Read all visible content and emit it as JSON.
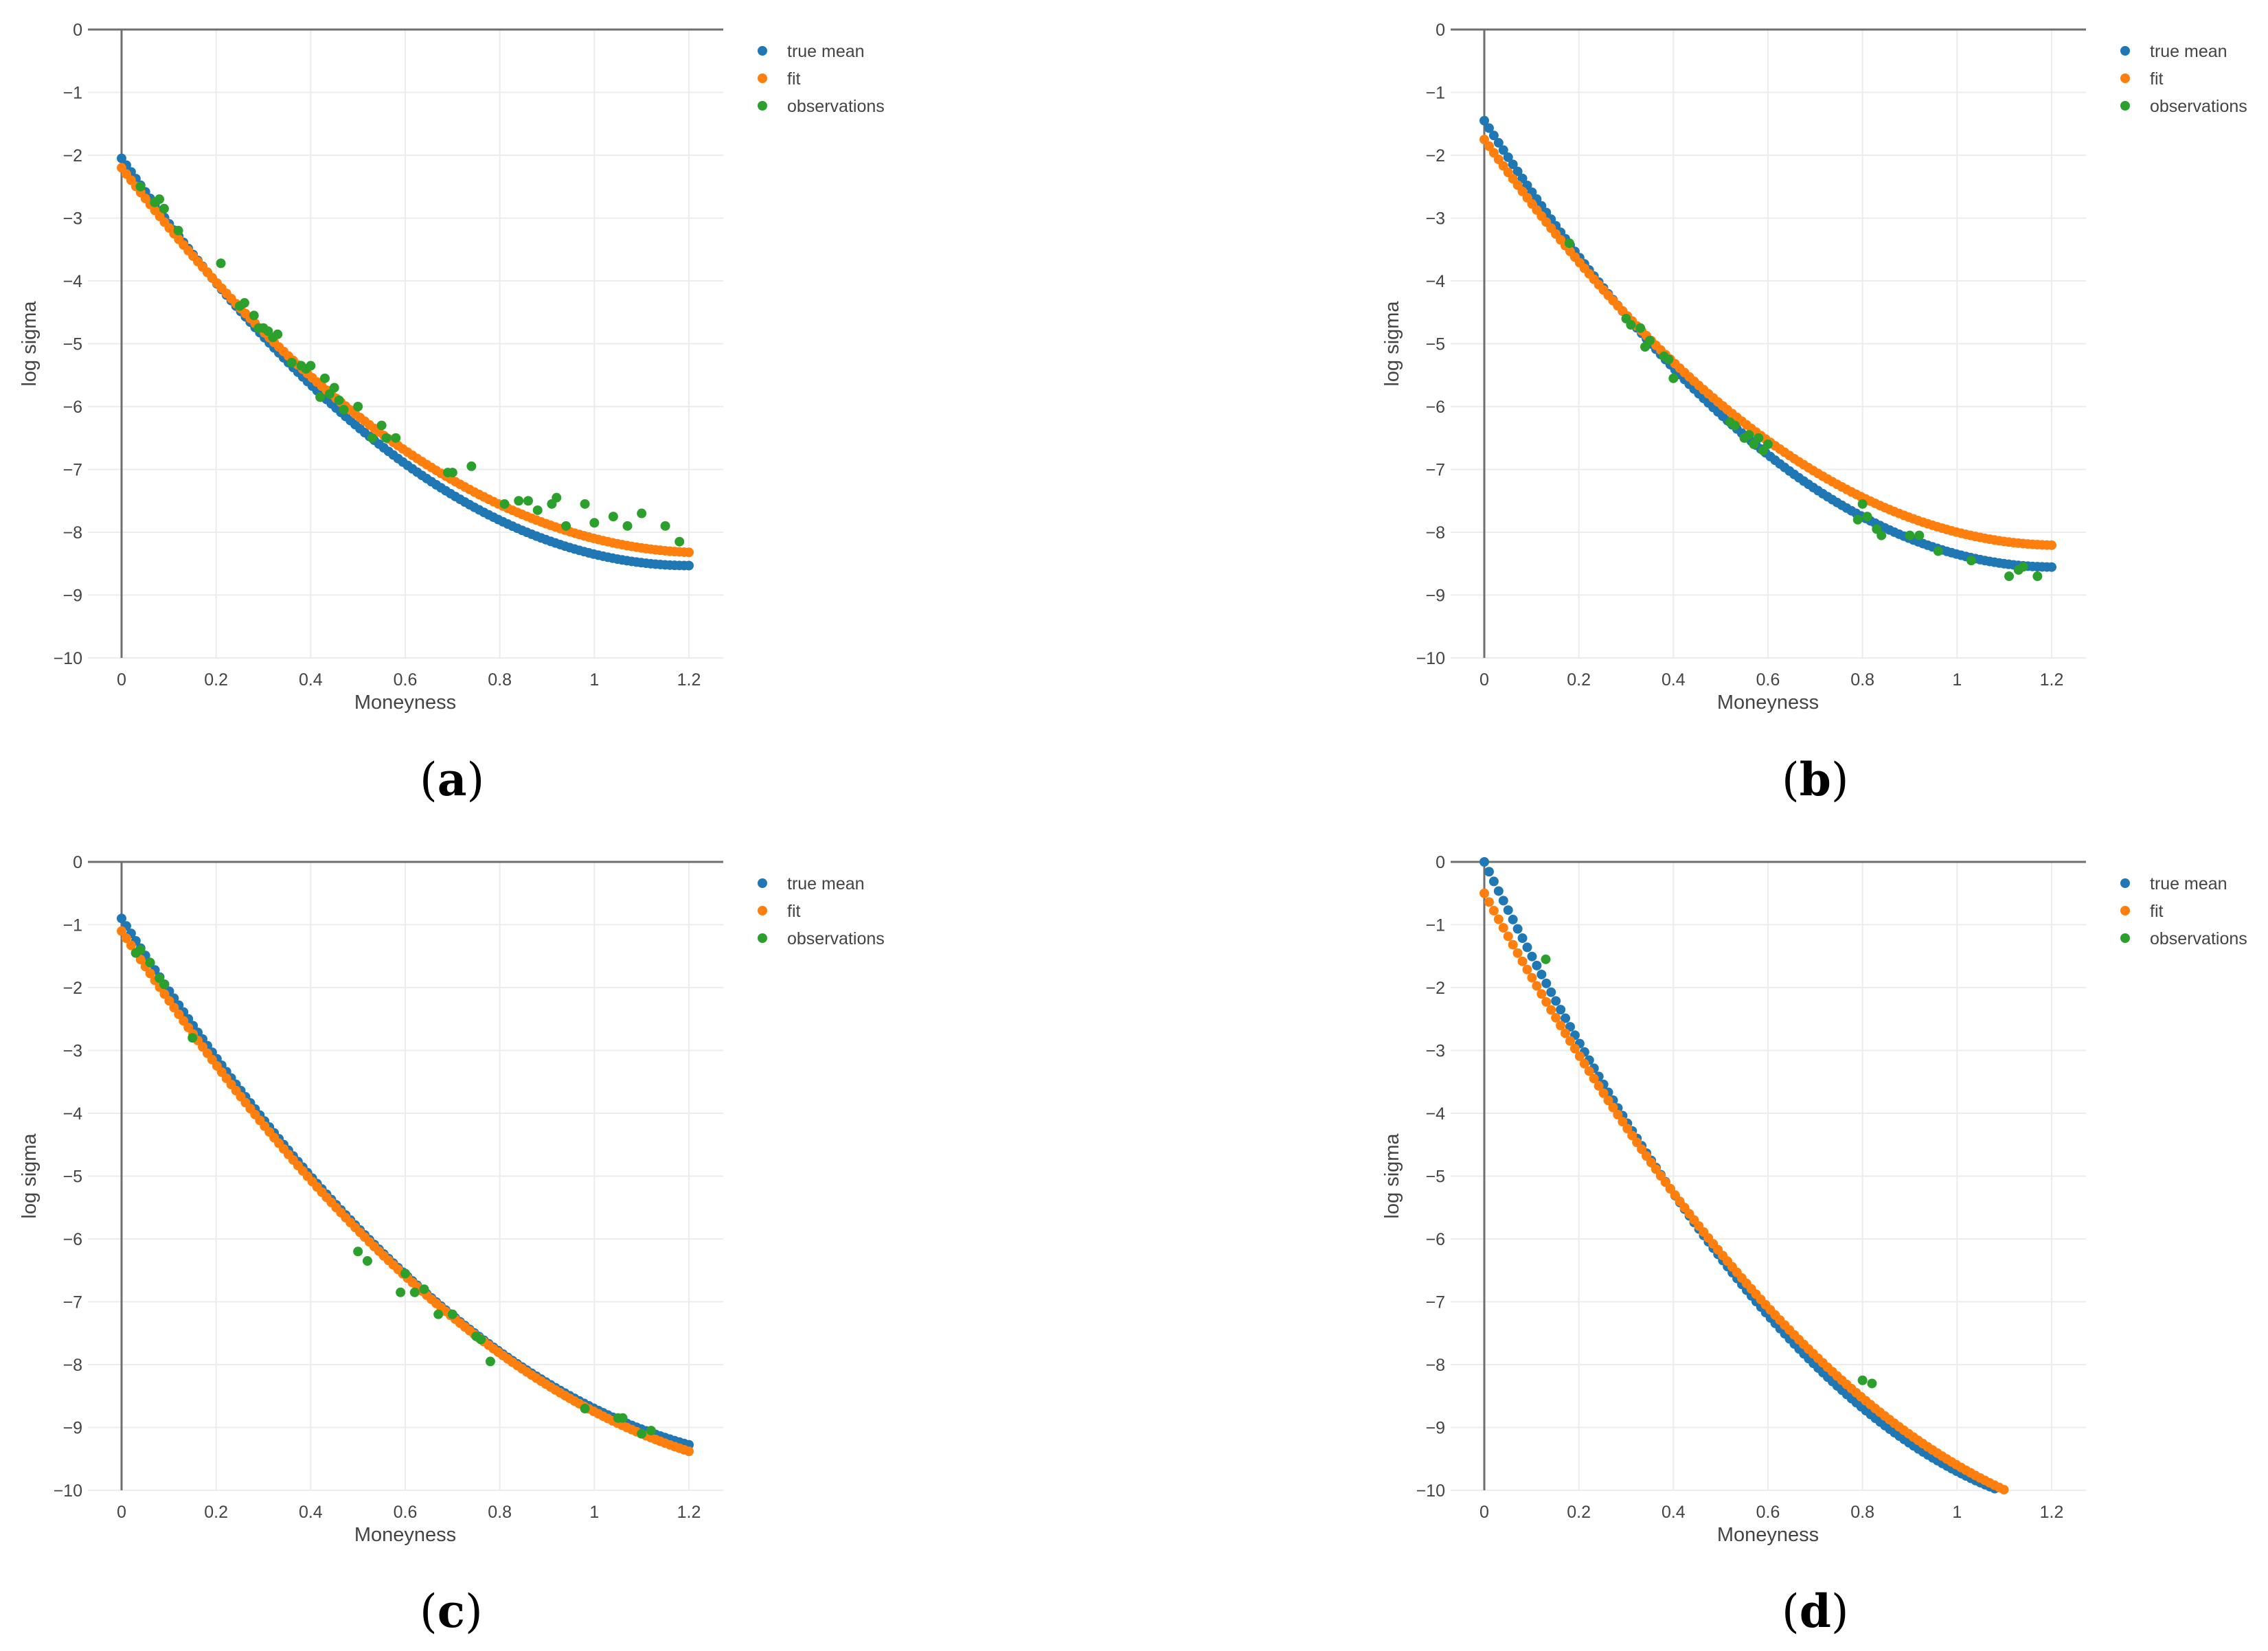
{
  "chart_data": [
    {
      "id": "a",
      "caption_letter": "a",
      "type": "scatter",
      "xlabel": "Moneyness",
      "ylabel": "log sigma",
      "xlim": [
        0,
        1.2
      ],
      "ylim": [
        -10,
        0
      ],
      "x_ticks": [
        0,
        0.2,
        0.4,
        0.6,
        0.8,
        1,
        1.2
      ],
      "x_tick_labels": [
        "0",
        "0.2",
        "0.4",
        "0.6",
        "0.8",
        "1",
        "1.2"
      ],
      "y_ticks": [
        0,
        -1,
        -2,
        -3,
        -4,
        -5,
        -6,
        -7,
        -8,
        -9,
        -10
      ],
      "y_tick_labels": [
        "0",
        "−1",
        "−2",
        "−3",
        "−4",
        "−5",
        "−6",
        "−7",
        "−8",
        "−9",
        "−10"
      ],
      "grid": true,
      "legend": "top-right",
      "legend_entries": [
        "true mean",
        "fit",
        "observations"
      ],
      "series": [
        {
          "name": "true mean",
          "color": "#1f77b4",
          "kind": "quadratic",
          "x_range": [
            0,
            1.2
          ],
          "count": 120,
          "coef": [
            -2.05,
            -10.8,
            4.5
          ]
        },
        {
          "name": "fit",
          "color": "#ff7f0e",
          "kind": "quadratic",
          "x_range": [
            0,
            1.2
          ],
          "count": 120,
          "coef": [
            -2.2,
            -9.9,
            4.0
          ]
        },
        {
          "name": "observations",
          "color": "#2ca02c",
          "kind": "points",
          "x": [
            0.04,
            0.07,
            0.08,
            0.09,
            0.12,
            0.21,
            0.25,
            0.26,
            0.28,
            0.29,
            0.3,
            0.31,
            0.32,
            0.33,
            0.36,
            0.38,
            0.39,
            0.4,
            0.42,
            0.43,
            0.44,
            0.45,
            0.46,
            0.47,
            0.5,
            0.53,
            0.55,
            0.56,
            0.58,
            0.69,
            0.7,
            0.74,
            0.81,
            0.84,
            0.86,
            0.88,
            0.91,
            0.92,
            0.94,
            0.98,
            1.0,
            1.04,
            1.07,
            1.1,
            1.15,
            1.18
          ],
          "y": [
            -2.5,
            -2.75,
            -2.7,
            -2.85,
            -3.2,
            -3.72,
            -4.4,
            -4.35,
            -4.55,
            -4.75,
            -4.75,
            -4.8,
            -4.9,
            -4.85,
            -5.3,
            -5.35,
            -5.4,
            -5.35,
            -5.85,
            -5.55,
            -5.8,
            -5.7,
            -5.9,
            -6.05,
            -6.0,
            -6.5,
            -6.3,
            -6.5,
            -6.5,
            -7.05,
            -7.05,
            -6.95,
            -7.55,
            -7.5,
            -7.5,
            -7.65,
            -7.55,
            -7.45,
            -7.9,
            -7.55,
            -7.85,
            -7.75,
            -7.9,
            -7.7,
            -7.9,
            -8.15
          ]
        }
      ]
    },
    {
      "id": "b",
      "caption_letter": "b",
      "type": "scatter",
      "xlabel": "Moneyness",
      "ylabel": "log sigma",
      "xlim": [
        0,
        1.2
      ],
      "ylim": [
        -10,
        0
      ],
      "x_ticks": [
        0,
        0.2,
        0.4,
        0.6,
        0.8,
        1,
        1.2
      ],
      "x_tick_labels": [
        "0",
        "0.2",
        "0.4",
        "0.6",
        "0.8",
        "1",
        "1.2"
      ],
      "y_ticks": [
        0,
        -1,
        -2,
        -3,
        -4,
        -5,
        -6,
        -7,
        -8,
        -9,
        -10
      ],
      "y_tick_labels": [
        "0",
        "−1",
        "−2",
        "−3",
        "−4",
        "−5",
        "−6",
        "−7",
        "−8",
        "−9",
        "−10"
      ],
      "grid": true,
      "legend": "top-right",
      "legend_entries": [
        "true mean",
        "fit",
        "observations"
      ],
      "series": [
        {
          "name": "true mean",
          "color": "#1f77b4",
          "kind": "quadratic",
          "x_range": [
            0,
            1.2
          ],
          "count": 120,
          "coef": [
            -1.45,
            -11.8,
            4.9
          ]
        },
        {
          "name": "fit",
          "color": "#ff7f0e",
          "kind": "quadratic",
          "x_range": [
            0,
            1.2
          ],
          "count": 120,
          "coef": [
            -1.75,
            -10.6,
            4.35
          ]
        },
        {
          "name": "observations",
          "color": "#2ca02c",
          "kind": "points",
          "x": [
            0.18,
            0.3,
            0.31,
            0.33,
            0.34,
            0.35,
            0.38,
            0.39,
            0.4,
            0.52,
            0.53,
            0.55,
            0.56,
            0.57,
            0.58,
            0.59,
            0.6,
            0.79,
            0.8,
            0.81,
            0.83,
            0.84,
            0.9,
            0.92,
            0.96,
            1.03,
            1.11,
            1.13,
            1.14,
            1.17
          ],
          "y": [
            -3.4,
            -4.6,
            -4.7,
            -4.75,
            -5.05,
            -4.95,
            -5.2,
            -5.25,
            -5.55,
            -6.25,
            -6.3,
            -6.5,
            -6.45,
            -6.6,
            -6.5,
            -6.7,
            -6.6,
            -7.8,
            -7.55,
            -7.75,
            -7.95,
            -8.05,
            -8.05,
            -8.05,
            -8.3,
            -8.45,
            -8.7,
            -8.6,
            -8.55,
            -8.7
          ]
        }
      ]
    },
    {
      "id": "c",
      "caption_letter": "c",
      "type": "scatter",
      "xlabel": "Moneyness",
      "ylabel": "log sigma",
      "xlim": [
        0,
        1.2
      ],
      "ylim": [
        -10,
        0
      ],
      "x_ticks": [
        0,
        0.2,
        0.4,
        0.6,
        0.8,
        1,
        1.2
      ],
      "x_tick_labels": [
        "0",
        "0.2",
        "0.4",
        "0.6",
        "0.8",
        "1",
        "1.2"
      ],
      "y_ticks": [
        0,
        -1,
        -2,
        -3,
        -4,
        -5,
        -6,
        -7,
        -8,
        -9,
        -10
      ],
      "y_tick_labels": [
        "0",
        "−1",
        "−2",
        "−3",
        "−4",
        "−5",
        "−6",
        "−7",
        "−8",
        "−9",
        "−10"
      ],
      "grid": true,
      "legend": "top-right",
      "legend_entries": [
        "true mean",
        "fit",
        "observations"
      ],
      "series": [
        {
          "name": "true mean",
          "color": "#1f77b4",
          "kind": "quadratic",
          "x_range": [
            0,
            1.2
          ],
          "count": 120,
          "coef": [
            -0.9,
            -11.9,
            4.1
          ]
        },
        {
          "name": "fit",
          "color": "#ff7f0e",
          "kind": "quadratic",
          "x_range": [
            0,
            1.2
          ],
          "count": 120,
          "coef": [
            -1.1,
            -11.4,
            3.75
          ]
        },
        {
          "name": "observations",
          "color": "#2ca02c",
          "kind": "points",
          "x": [
            0.03,
            0.04,
            0.06,
            0.08,
            0.09,
            0.15,
            0.5,
            0.52,
            0.59,
            0.6,
            0.62,
            0.64,
            0.67,
            0.7,
            0.75,
            0.76,
            0.78,
            0.98,
            1.05,
            1.06,
            1.1,
            1.12
          ],
          "y": [
            -1.45,
            -1.4,
            -1.6,
            -1.85,
            -1.95,
            -2.8,
            -6.2,
            -6.35,
            -6.85,
            -6.55,
            -6.85,
            -6.8,
            -7.2,
            -7.2,
            -7.55,
            -7.6,
            -7.95,
            -8.7,
            -8.85,
            -8.85,
            -9.1,
            -9.05
          ]
        }
      ]
    },
    {
      "id": "d",
      "caption_letter": "d",
      "type": "scatter",
      "xlabel": "Moneyness",
      "ylabel": "log sigma",
      "xlim": [
        0,
        1.2
      ],
      "ylim": [
        -10,
        0
      ],
      "x_ticks": [
        0,
        0.2,
        0.4,
        0.6,
        0.8,
        1,
        1.2
      ],
      "x_tick_labels": [
        "0",
        "0.2",
        "0.4",
        "0.6",
        "0.8",
        "1",
        "1.2"
      ],
      "y_ticks": [
        0,
        -1,
        -2,
        -3,
        -4,
        -5,
        -6,
        -7,
        -8,
        -9,
        -10
      ],
      "y_tick_labels": [
        "0",
        "−1",
        "−2",
        "−3",
        "−4",
        "−5",
        "−6",
        "−7",
        "−8",
        "−9",
        "−10"
      ],
      "grid": true,
      "legend": "top-right",
      "legend_entries": [
        "true mean",
        "fit",
        "observations"
      ],
      "series": [
        {
          "name": "true mean",
          "color": "#1f77b4",
          "kind": "quadratic",
          "x_range": [
            0,
            1.12
          ],
          "count": 112,
          "coef": [
            0.0,
            -15.5,
            5.8
          ]
        },
        {
          "name": "fit",
          "color": "#ff7f0e",
          "kind": "quadratic",
          "x_range": [
            0,
            1.2
          ],
          "count": 120,
          "coef": [
            -0.5,
            -13.8,
            4.7
          ]
        },
        {
          "name": "observations",
          "color": "#2ca02c",
          "kind": "points",
          "x": [
            0.13,
            0.8,
            0.82
          ],
          "y": [
            -1.55,
            -8.25,
            -8.3
          ]
        }
      ]
    }
  ]
}
